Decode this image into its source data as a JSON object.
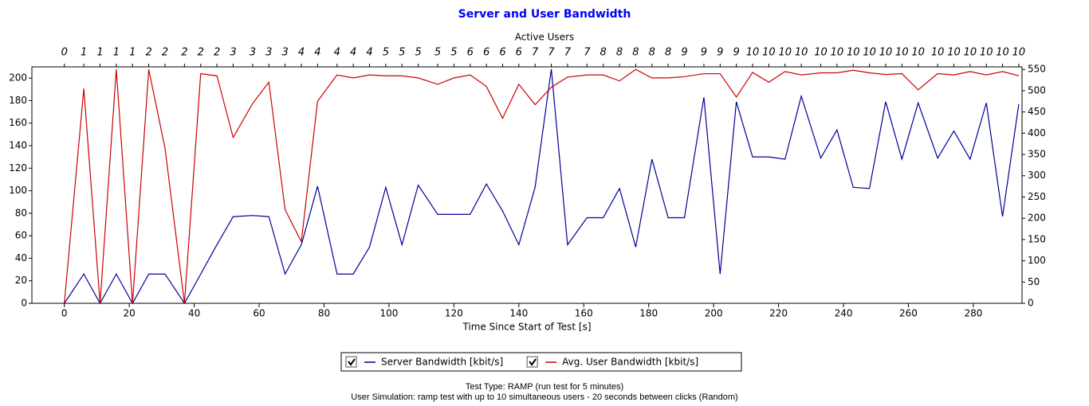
{
  "chart_data": {
    "type": "line",
    "title": "Server and User Bandwidth",
    "top_axis_label": "Active Users",
    "xlabel": "Time Since Start of Test [s]",
    "x": [
      0,
      6,
      11,
      16,
      21,
      26,
      31,
      37,
      42,
      47,
      52,
      58,
      63,
      68,
      73,
      78,
      84,
      89,
      94,
      99,
      104,
      109,
      115,
      120,
      125,
      130,
      135,
      140,
      145,
      150,
      155,
      161,
      166,
      171,
      176,
      181,
      186,
      191,
      197,
      202,
      207,
      212,
      217,
      222,
      227,
      233,
      238,
      243,
      248,
      253,
      258,
      263,
      269,
      274,
      279,
      284,
      289,
      294
    ],
    "active_users": [
      0,
      1,
      1,
      1,
      1,
      2,
      2,
      2,
      2,
      2,
      3,
      3,
      3,
      3,
      4,
      4,
      4,
      4,
      4,
      5,
      5,
      5,
      5,
      5,
      6,
      6,
      6,
      6,
      7,
      7,
      7,
      7,
      8,
      8,
      8,
      8,
      8,
      9,
      9,
      9,
      9,
      10,
      10,
      10,
      10,
      10,
      10,
      10,
      10,
      10,
      10,
      10,
      10,
      10,
      10,
      10,
      10,
      10
    ],
    "series": [
      {
        "name": "Server Bandwidth [kbit/s]",
        "color": "#000099",
        "axis": "y",
        "values": [
          0,
          26,
          0,
          26,
          0,
          26,
          26,
          0,
          26,
          52,
          77,
          78,
          77,
          26,
          52,
          104,
          26,
          26,
          50,
          103,
          52,
          105,
          79,
          79,
          79,
          106,
          82,
          52,
          103,
          208,
          52,
          76,
          76,
          102,
          50,
          128,
          76,
          76,
          183,
          26,
          179,
          130,
          130,
          128,
          184,
          129,
          154,
          103,
          102,
          179,
          128,
          178,
          129,
          153,
          128,
          178,
          77,
          177
        ]
      },
      {
        "name": "Avg. User Bandwidth [kbit/s]",
        "color": "#cc0000",
        "axis": "y2",
        "values": [
          0,
          505,
          0,
          550,
          0,
          550,
          365,
          0,
          540,
          535,
          390,
          470,
          520,
          220,
          145,
          475,
          537,
          530,
          537,
          535,
          535,
          530,
          515,
          530,
          537,
          510,
          435,
          515,
          467,
          508,
          532,
          537,
          537,
          523,
          550,
          530,
          530,
          533,
          540,
          540,
          485,
          543,
          520,
          545,
          537,
          542,
          542,
          548,
          542,
          538,
          540,
          502,
          540,
          537,
          545,
          537,
          545,
          535
        ]
      }
    ],
    "xlim": [
      -10,
      295
    ],
    "xticks": [
      0,
      20,
      40,
      60,
      80,
      100,
      120,
      140,
      160,
      180,
      200,
      220,
      240,
      260,
      280
    ],
    "ylim": [
      0,
      210
    ],
    "yticks": [
      0,
      20,
      40,
      60,
      80,
      100,
      120,
      140,
      160,
      180,
      200
    ],
    "y2lim": [
      0,
      556
    ],
    "y2ticks": [
      0,
      50,
      100,
      150,
      200,
      250,
      300,
      350,
      400,
      450,
      500,
      550
    ],
    "legend": "bottom",
    "footer": [
      "Test Type: RAMP (run test for 5 minutes)",
      "User Simulation: ramp test with up to 10 simultaneous users - 20 seconds between clicks (Random)"
    ]
  }
}
